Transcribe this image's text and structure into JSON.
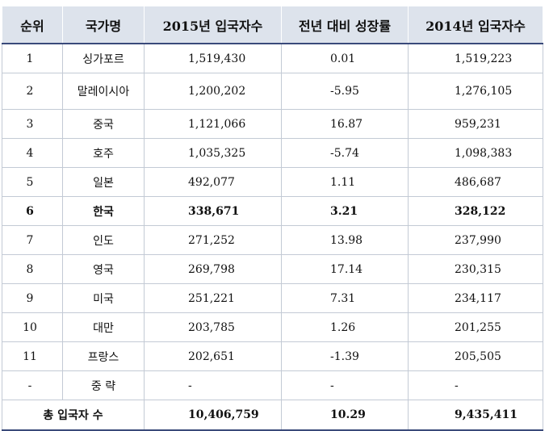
{
  "headers": [
    "순위",
    "국가명",
    "2015년 입국자수",
    "전년 대비 성장률",
    "2014년 입국자수"
  ],
  "rows": [
    {
      "rank": "1",
      "country": "싱가포르",
      "arrivals_2015": "1,519,430",
      "growth": "0.01",
      "arrivals_2014": "1,519,223",
      "highlight": false
    },
    {
      "rank": "2",
      "country": "말레이시아",
      "arrivals_2015": "1,200,202",
      "growth": "-5.95",
      "arrivals_2014": "1,276,105",
      "highlight": false
    },
    {
      "rank": "3",
      "country": "중국",
      "arrivals_2015": "1,121,066",
      "growth": "16.87",
      "arrivals_2014": "959,231",
      "highlight": false
    },
    {
      "rank": "4",
      "country": "호주",
      "arrivals_2015": "1,035,325",
      "growth": "-5.74",
      "arrivals_2014": "1,098,383",
      "highlight": false
    },
    {
      "rank": "5",
      "country": "일본",
      "arrivals_2015": "492,077",
      "growth": "1.11",
      "arrivals_2014": "486,687",
      "highlight": false
    },
    {
      "rank": "6",
      "country": "한국",
      "arrivals_2015": "338,671",
      "growth": "3.21",
      "arrivals_2014": "328,122",
      "highlight": true
    },
    {
      "rank": "7",
      "country": "인도",
      "arrivals_2015": "271,252",
      "growth": "13.98",
      "arrivals_2014": "237,990",
      "highlight": false
    },
    {
      "rank": "8",
      "country": "영국",
      "arrivals_2015": "269,798",
      "growth": "17.14",
      "arrivals_2014": "230,315",
      "highlight": false
    },
    {
      "rank": "9",
      "country": "미국",
      "arrivals_2015": "251,221",
      "growth": "7.31",
      "arrivals_2014": "234,117",
      "highlight": false
    },
    {
      "rank": "10",
      "country": "대만",
      "arrivals_2015": "203,785",
      "growth": "1.26",
      "arrivals_2014": "201,255",
      "highlight": false
    },
    {
      "rank": "11",
      "country": "프랑스",
      "arrivals_2015": "202,651",
      "growth": "-1.39",
      "arrivals_2014": "205,505",
      "highlight": false
    },
    {
      "rank": "-",
      "country": "중 략",
      "arrivals_2015": "-",
      "growth": "-",
      "arrivals_2014": "-",
      "highlight": false
    }
  ],
  "total": {
    "label": "총 입국자 수",
    "arrivals_2015": "10,406,759",
    "growth": "10.29",
    "arrivals_2014": "9,435,411"
  },
  "colors": {
    "header_bg": "#dde3ec",
    "border": "#c3cad5",
    "rule": "#3a4a7a"
  }
}
